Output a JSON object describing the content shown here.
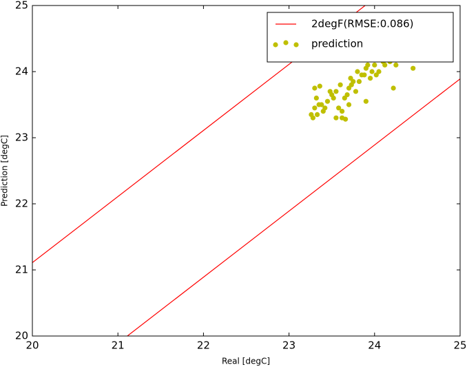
{
  "chart_data": {
    "type": "scatter",
    "xlabel": "Real [degC]",
    "ylabel": "Prediction [degC]",
    "xlim": [
      20,
      25
    ],
    "ylim": [
      20,
      25
    ],
    "xticks": [
      20,
      21,
      22,
      23,
      24,
      25
    ],
    "yticks": [
      20,
      21,
      22,
      23,
      24,
      25
    ],
    "legend": "upper right",
    "series": [
      {
        "name": "2degF(RMSE:0.086)",
        "type": "line",
        "color": "#ff0000",
        "x": [
          20,
          23.89
        ],
        "values": [
          21.11,
          25
        ]
      },
      {
        "type": "line",
        "color": "#ff0000",
        "x": [
          21.11,
          25
        ],
        "values": [
          20,
          23.89
        ]
      },
      {
        "name": "prediction",
        "type": "scatter",
        "color": "#bfbf00",
        "x": [
          23.28,
          23.3,
          23.32,
          23.35,
          23.3,
          23.4,
          23.45,
          23.5,
          23.55,
          23.6,
          23.62,
          23.65,
          23.7,
          23.72,
          23.75,
          23.78,
          23.8,
          23.85,
          23.9,
          23.95,
          24.0,
          24.05,
          24.1,
          24.15,
          24.2,
          24.25,
          24.3,
          24.45,
          24.48,
          23.33,
          23.38,
          23.42,
          23.48,
          23.52,
          23.58,
          23.68,
          23.73,
          23.82,
          23.88,
          23.92,
          23.97,
          24.02,
          24.08,
          24.12,
          24.18,
          24.22,
          23.26,
          23.36,
          23.62,
          23.66,
          23.9,
          24.05,
          24.35,
          23.55,
          23.7
        ],
        "values": [
          23.3,
          23.45,
          23.6,
          23.5,
          23.75,
          23.4,
          23.55,
          23.65,
          23.7,
          23.8,
          23.3,
          23.6,
          23.75,
          23.9,
          23.85,
          23.7,
          24.0,
          23.95,
          24.05,
          23.9,
          24.1,
          24.0,
          24.15,
          24.2,
          24.25,
          24.1,
          24.3,
          24.05,
          24.25,
          23.35,
          23.5,
          23.45,
          23.7,
          23.6,
          23.45,
          23.65,
          23.8,
          23.85,
          23.95,
          24.1,
          24.0,
          23.95,
          24.2,
          24.1,
          24.15,
          23.75,
          23.35,
          23.78,
          23.4,
          23.28,
          23.55,
          24.2,
          24.28,
          23.3,
          23.5
        ]
      }
    ]
  }
}
